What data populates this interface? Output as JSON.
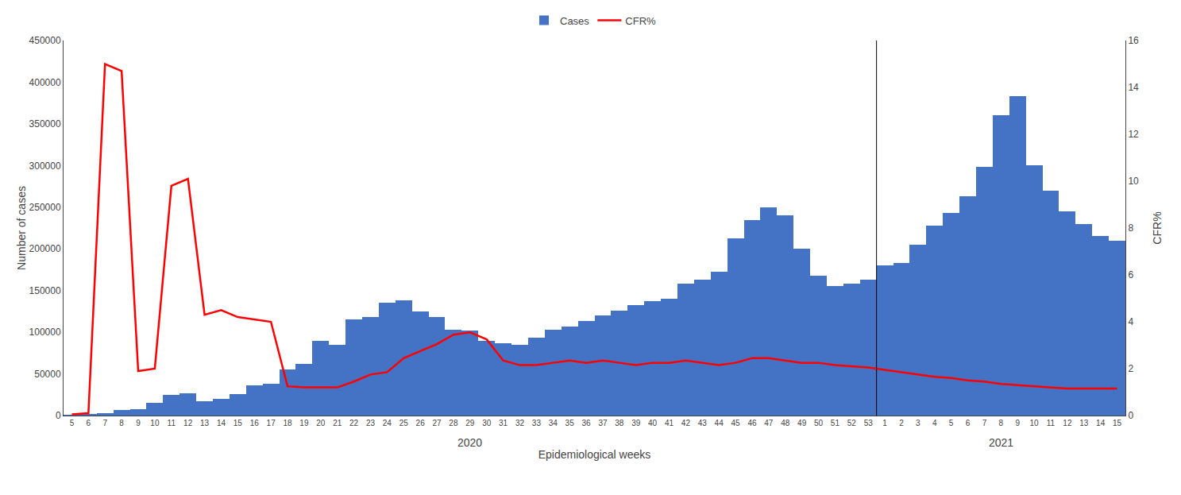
{
  "chart_data": {
    "type": "bar",
    "categories": [
      "5",
      "6",
      "7",
      "8",
      "9",
      "10",
      "11",
      "12",
      "13",
      "14",
      "15",
      "16",
      "17",
      "18",
      "19",
      "20",
      "21",
      "22",
      "23",
      "24",
      "25",
      "26",
      "27",
      "28",
      "29",
      "30",
      "31",
      "32",
      "33",
      "34",
      "35",
      "36",
      "37",
      "38",
      "39",
      "40",
      "41",
      "42",
      "43",
      "44",
      "45",
      "46",
      "47",
      "48",
      "49",
      "50",
      "51",
      "52",
      "53",
      "1",
      "2",
      "3",
      "4",
      "5",
      "6",
      "7",
      "8",
      "9",
      "10",
      "11",
      "12",
      "13",
      "14",
      "15"
    ],
    "series": [
      {
        "name": "Cases",
        "type": "bar",
        "color": "#4472c4",
        "values": [
          500,
          1000,
          3000,
          7000,
          8000,
          15000,
          25000,
          27000,
          17000,
          20000,
          26000,
          36000,
          38000,
          55000,
          62000,
          90000,
          85000,
          115000,
          118000,
          135000,
          138000,
          125000,
          118000,
          103000,
          102000,
          90000,
          87000,
          85000,
          93000,
          103000,
          107000,
          113000,
          120000,
          126000,
          133000,
          137000,
          140000,
          158000,
          163000,
          173000,
          213000,
          235000,
          250000,
          240000,
          200000,
          168000,
          155000,
          158000,
          163000,
          180000,
          183000,
          205000,
          228000,
          243000,
          263000,
          298000,
          360000,
          383000,
          300000,
          270000,
          245000,
          230000,
          215000,
          210000
        ]
      },
      {
        "name": "CFR%",
        "type": "line",
        "color": "#ff0000",
        "axis": "y2",
        "values": [
          0.05,
          0.1,
          15.0,
          14.7,
          1.9,
          2.0,
          9.8,
          10.1,
          4.3,
          4.5,
          4.2,
          4.1,
          4.0,
          1.25,
          1.2,
          1.2,
          1.2,
          1.45,
          1.75,
          1.85,
          2.45,
          2.75,
          3.05,
          3.45,
          3.55,
          3.25,
          2.35,
          2.15,
          2.15,
          2.25,
          2.35,
          2.25,
          2.35,
          2.25,
          2.15,
          2.25,
          2.25,
          2.35,
          2.25,
          2.15,
          2.25,
          2.45,
          2.45,
          2.35,
          2.25,
          2.25,
          2.15,
          2.1,
          2.05,
          1.95,
          1.85,
          1.75,
          1.65,
          1.6,
          1.5,
          1.45,
          1.35,
          1.3,
          1.25,
          1.2,
          1.15,
          1.15,
          1.15,
          1.15
        ]
      }
    ],
    "xlabel": "Epidemiological weeks",
    "ylabel": "Number of cases",
    "y2label": "CFR%",
    "ylim": [
      0,
      450000
    ],
    "yticks": [
      0,
      50000,
      100000,
      150000,
      200000,
      250000,
      300000,
      350000,
      400000,
      450000
    ],
    "y2lim": [
      0,
      16
    ],
    "y2ticks": [
      0,
      2,
      4,
      6,
      8,
      10,
      12,
      14,
      16
    ],
    "annotations": [
      "2020",
      "2021"
    ],
    "legend": "top",
    "grid": false
  }
}
